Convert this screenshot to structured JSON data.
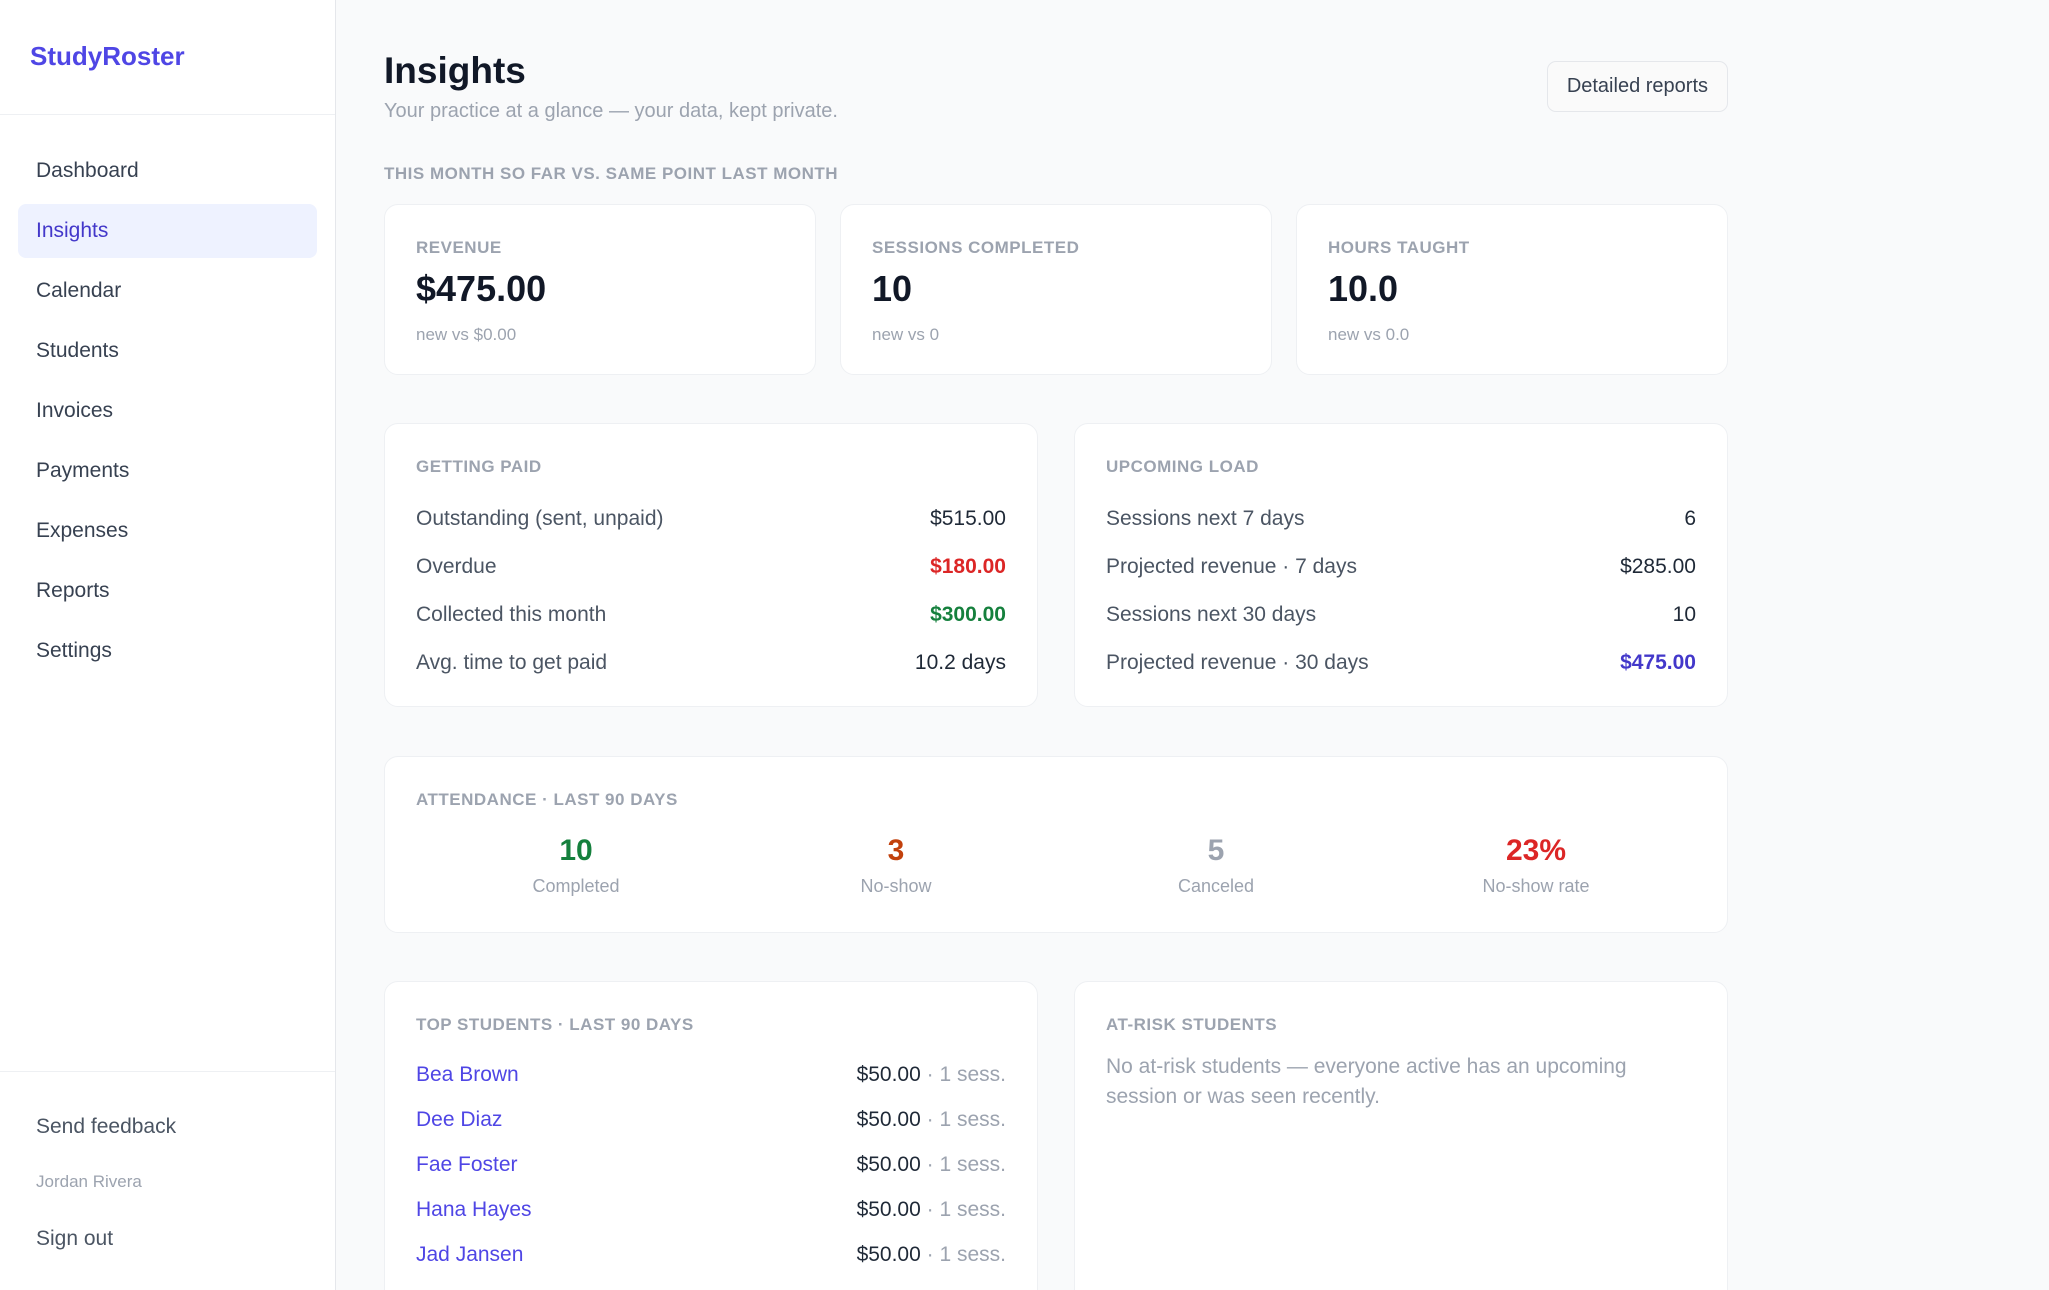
{
  "app": {
    "brand": "StudyRoster"
  },
  "sidebar": {
    "items": [
      {
        "label": "Dashboard",
        "active": false
      },
      {
        "label": "Insights",
        "active": true
      },
      {
        "label": "Calendar",
        "active": false
      },
      {
        "label": "Students",
        "active": false
      },
      {
        "label": "Invoices",
        "active": false
      },
      {
        "label": "Payments",
        "active": false
      },
      {
        "label": "Expenses",
        "active": false
      },
      {
        "label": "Reports",
        "active": false
      },
      {
        "label": "Settings",
        "active": false
      }
    ],
    "feedback": "Send feedback",
    "user": "Jordan Rivera",
    "signout": "Sign out"
  },
  "header": {
    "title": "Insights",
    "subtitle": "Your practice at a glance — your data, kept private.",
    "reports_button": "Detailed reports"
  },
  "month": {
    "label": "This month so far vs. same point last month",
    "kpis": [
      {
        "label": "Revenue",
        "value": "$475.00",
        "note": "new vs $0.00"
      },
      {
        "label": "Sessions completed",
        "value": "10",
        "note": "new vs 0"
      },
      {
        "label": "Hours taught",
        "value": "10.0",
        "note": "new vs 0.0"
      }
    ]
  },
  "getting_paid": {
    "label": "Getting paid",
    "rows": [
      {
        "label": "Outstanding (sent, unpaid)",
        "value": "$515.00"
      },
      {
        "label": "Overdue",
        "value": "$180.00"
      },
      {
        "label": "Collected this month",
        "value": "$300.00"
      },
      {
        "label": "Avg. time to get paid",
        "value": "10.2 days"
      }
    ]
  },
  "upcoming": {
    "label": "Upcoming load",
    "rows": [
      {
        "label": "Sessions next 7 days",
        "value": "6"
      },
      {
        "label": "Projected revenue · 7 days",
        "value": "$285.00"
      },
      {
        "label": "Sessions next 30 days",
        "value": "10"
      },
      {
        "label": "Projected revenue · 30 days",
        "value": "$475.00"
      }
    ]
  },
  "attendance": {
    "label": "Attendance · last 90 days",
    "stats": [
      {
        "value": "10",
        "label": "Completed",
        "color": "#15803d"
      },
      {
        "value": "3",
        "label": "No-show",
        "color": "#c2410c"
      },
      {
        "value": "5",
        "label": "Canceled",
        "color": "#9ca3af"
      },
      {
        "value": "23%",
        "label": "No-show rate",
        "color": "#dc2626"
      }
    ]
  },
  "top_students": {
    "label": "Top students · last 90 days",
    "rows": [
      {
        "name": "Bea Brown",
        "amount": "$50.00",
        "sessions": "· 1 sess."
      },
      {
        "name": "Dee Diaz",
        "amount": "$50.00",
        "sessions": "· 1 sess."
      },
      {
        "name": "Fae Foster",
        "amount": "$50.00",
        "sessions": "· 1 sess."
      },
      {
        "name": "Hana Hayes",
        "amount": "$50.00",
        "sessions": "· 1 sess."
      },
      {
        "name": "Jad Jansen",
        "amount": "$50.00",
        "sessions": "· 1 sess."
      }
    ]
  },
  "at_risk": {
    "label": "At-risk students",
    "empty_text": "No at-risk students — everyone active has an upcoming session or was seen recently."
  },
  "colors": {
    "accent": "#4f46e5",
    "active_nav_bg": "#eef2ff",
    "red": "#dc2626",
    "green": "#15803d",
    "orange": "#c2410c"
  }
}
